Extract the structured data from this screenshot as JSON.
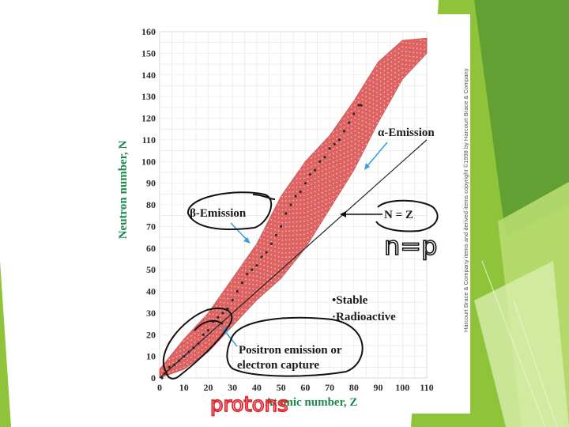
{
  "slide": {
    "colors": {
      "accent_green": "#8fc43a",
      "dark_green": "#5a9a32",
      "band": "#d94a4a",
      "stable": "#2a2a2a",
      "arrow": "#3aa0d8",
      "ink": "#111111",
      "red_ink": "#e0262e"
    }
  },
  "chart_data": {
    "type": "scatter",
    "title": "",
    "xlabel": "Atomic number, Z",
    "ylabel": "Neutron number, N",
    "xlim": [
      0,
      110
    ],
    "ylim": [
      0,
      160
    ],
    "x_ticks": [
      0,
      10,
      20,
      30,
      40,
      50,
      60,
      70,
      80,
      90,
      100,
      110
    ],
    "y_ticks": [
      0,
      10,
      20,
      30,
      40,
      50,
      60,
      70,
      80,
      90,
      100,
      110,
      120,
      130,
      140,
      150,
      160
    ],
    "grid": true,
    "series": [
      {
        "name": "Stable",
        "marker": "dot",
        "points": [
          [
            1,
            0
          ],
          [
            2,
            2
          ],
          [
            4,
            5
          ],
          [
            6,
            6
          ],
          [
            8,
            8
          ],
          [
            10,
            10
          ],
          [
            12,
            12
          ],
          [
            14,
            14
          ],
          [
            16,
            16
          ],
          [
            18,
            20
          ],
          [
            20,
            22
          ],
          [
            22,
            26
          ],
          [
            24,
            28
          ],
          [
            26,
            30
          ],
          [
            28,
            32
          ],
          [
            30,
            36
          ],
          [
            32,
            40
          ],
          [
            34,
            44
          ],
          [
            36,
            48
          ],
          [
            38,
            50
          ],
          [
            40,
            52
          ],
          [
            42,
            56
          ],
          [
            44,
            58
          ],
          [
            46,
            62
          ],
          [
            48,
            66
          ],
          [
            50,
            70
          ],
          [
            52,
            76
          ],
          [
            54,
            80
          ],
          [
            56,
            84
          ],
          [
            58,
            86
          ],
          [
            60,
            90
          ],
          [
            62,
            94
          ],
          [
            64,
            96
          ],
          [
            66,
            100
          ],
          [
            68,
            102
          ],
          [
            70,
            106
          ],
          [
            72,
            108
          ],
          [
            74,
            110
          ],
          [
            76,
            114
          ],
          [
            78,
            118
          ],
          [
            80,
            122
          ],
          [
            82,
            126
          ],
          [
            83,
            126
          ]
        ]
      },
      {
        "name": "Radioactive",
        "marker": "band",
        "lower": [
          [
            0,
            0
          ],
          [
            10,
            4
          ],
          [
            20,
            12
          ],
          [
            30,
            24
          ],
          [
            40,
            36
          ],
          [
            50,
            46
          ],
          [
            60,
            60
          ],
          [
            70,
            78
          ],
          [
            80,
            96
          ],
          [
            90,
            118
          ],
          [
            100,
            138
          ],
          [
            110,
            150
          ]
        ],
        "upper": [
          [
            0,
            4
          ],
          [
            10,
            18
          ],
          [
            20,
            30
          ],
          [
            30,
            46
          ],
          [
            40,
            62
          ],
          [
            50,
            84
          ],
          [
            60,
            100
          ],
          [
            70,
            112
          ],
          [
            80,
            128
          ],
          [
            90,
            146
          ],
          [
            100,
            156
          ],
          [
            110,
            157
          ]
        ]
      }
    ],
    "reference_line": {
      "label": "N = Z",
      "points": [
        [
          0,
          0
        ],
        [
          110,
          110
        ]
      ]
    },
    "annotations": [
      {
        "text": "α-Emission",
        "region": "upper-right"
      },
      {
        "text": "β-Emission",
        "region": "upper-left"
      },
      {
        "text": "Positron emission or",
        "region": "lower-middle"
      },
      {
        "text": "electron capture",
        "region": "lower-middle"
      }
    ],
    "legend": {
      "placement": "lower-right",
      "entries": [
        "Stable",
        "Radioactive"
      ]
    },
    "credit": "Harcourt Brace & Company items and derived items copyright ©1998 by Harcourt Brace & Company",
    "handwritten": {
      "n_equals_p": "n=p",
      "protons": "protons"
    }
  }
}
